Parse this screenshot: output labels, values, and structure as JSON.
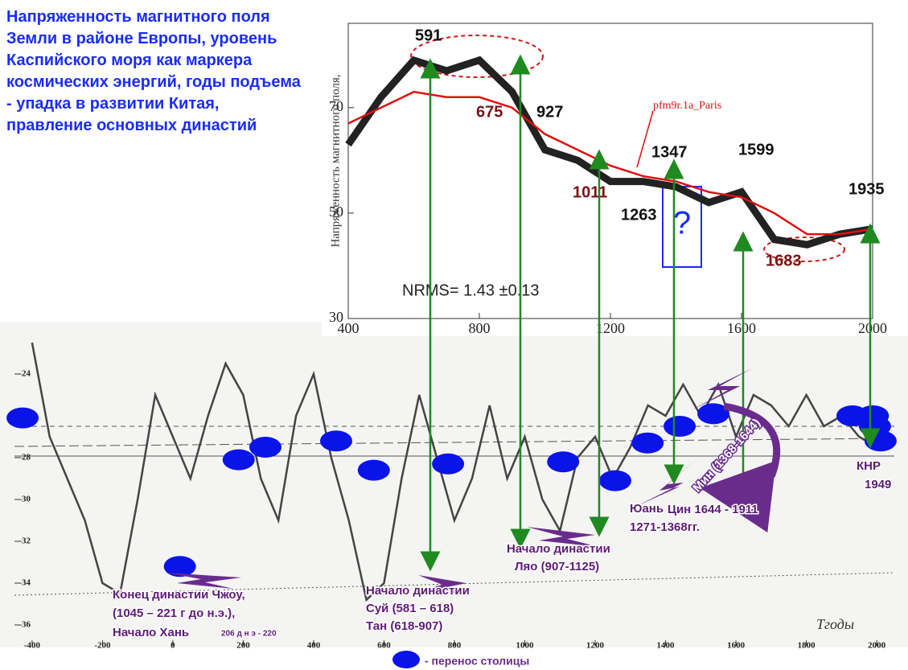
{
  "chart_data": [
    {
      "type": "line",
      "title": "Напряженность магнитного поля Земли в районе Европы, уровень Каспийского моря как маркера космических энергий, годы подъема - упадка в развитии Китая, правление основных династий",
      "ylabel": "Напряженность магнитного поля,",
      "xlim": [
        400,
        2000
      ],
      "xticks": [
        400,
        800,
        1200,
        1600,
        2000
      ],
      "ylim": [
        30,
        86
      ],
      "yticks": [
        30,
        50,
        70
      ],
      "x": [
        400,
        500,
        600,
        700,
        800,
        900,
        1000,
        1100,
        1200,
        1300,
        1400,
        1500,
        1600,
        1700,
        1800,
        1900,
        2000
      ],
      "series": [
        {
          "color": "#222222",
          "values": [
            63,
            72,
            79,
            77,
            79,
            73,
            62,
            60,
            56,
            56,
            55,
            52,
            54,
            45,
            44,
            46,
            47
          ]
        },
        {
          "name": "pfm9r.1a_Paris",
          "color": "#e01010",
          "values": [
            67,
            70,
            73,
            72,
            72,
            70,
            65,
            62,
            59,
            57,
            56,
            54,
            53,
            50,
            46,
            46,
            47
          ]
        }
      ],
      "annotations": [
        "591",
        "675",
        "927",
        "1011",
        "1263",
        "1347",
        "1599",
        "1683",
        "1935",
        "NRMS= 1.43 ±0.13",
        "?"
      ]
    },
    {
      "type": "line",
      "xlabel": "Tгоды",
      "xlim": [
        -450,
        2050
      ],
      "xticks": [
        -400,
        -200,
        0,
        200,
        400,
        600,
        800,
        1000,
        1200,
        1400,
        1600,
        1800,
        2000
      ],
      "ylim": [
        -37,
        -21.5
      ],
      "yticks": [
        -24,
        -26,
        -28,
        -30,
        -32,
        -34,
        -36
      ],
      "x": [
        -400,
        -350,
        -300,
        -250,
        -200,
        -150,
        -100,
        -50,
        0,
        50,
        100,
        150,
        200,
        250,
        300,
        350,
        400,
        450,
        500,
        550,
        600,
        650,
        700,
        750,
        800,
        850,
        900,
        950,
        1000,
        1050,
        1100,
        1150,
        1200,
        1250,
        1300,
        1350,
        1400,
        1450,
        1500,
        1550,
        1600,
        1650,
        1700,
        1750,
        1800,
        1850,
        1900,
        1950,
        2000
      ],
      "series": [
        {
          "color": "#444444",
          "values": [
            -22.5,
            -27,
            -29,
            -31,
            -34,
            -34.5,
            -30,
            -25,
            -27,
            -29,
            -26,
            -23.5,
            -25,
            -29,
            -31,
            -26,
            -24,
            -28,
            -31,
            -34.8,
            -34,
            -29,
            -25,
            -28,
            -31,
            -29,
            -25.5,
            -29,
            -27,
            -30,
            -31.5,
            -28,
            -27,
            -29,
            -27.5,
            -25.5,
            -26,
            -24.5,
            -26,
            -24.5,
            -27,
            -25,
            -25.5,
            -26.5,
            -25,
            -26.5,
            -26,
            -27,
            -27.5
          ]
        }
      ],
      "markers": {
        "name": "- перенос столицы",
        "color": "#0a14e8",
        "x": [
          -427,
          20,
          187,
          263,
          464,
          571,
          782,
          1109,
          1257,
          1349,
          1440,
          1536,
          1931,
          1989,
          1995,
          2011
        ],
        "values": [
          -26.1,
          -33.2,
          -28.1,
          -27.5,
          -27.2,
          -28.6,
          -28.3,
          -28.2,
          -29.1,
          -27.3,
          -26.5,
          -25.9,
          -26.0,
          -26.0,
          -26.5,
          -27.2
        ]
      },
      "annotations": [
        "Конец династии Чжоу,",
        "(1045 – 221 г до н.э.),",
        "Начало Хань",
        "206 д н э - 220",
        "Начало династии",
        "Суй (581 – 618)",
        "Тан (618-907)",
        "Начало династии",
        "Ляо (907-1125)",
        "Юань",
        "1271-1368гг.",
        "Мин (1368-1644)",
        "Цин 1644 - 1911",
        "КНР",
        "1949"
      ]
    }
  ]
}
